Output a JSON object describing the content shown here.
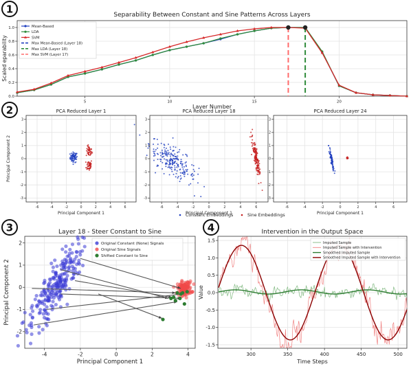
{
  "panel_labels": [
    "1",
    "2",
    "3",
    "4"
  ],
  "chart_data": [
    {
      "id": "p1",
      "type": "line",
      "title": "Separability Between Constant and Sine Patterns Across Layers",
      "xlabel": "Layer Number",
      "ylabel": "Scaled eparability",
      "xlim": [
        1,
        24
      ],
      "ylim": [
        0,
        1.1
      ],
      "xticks": [
        5,
        10,
        15,
        20
      ],
      "yticks": [
        0.0,
        0.2,
        0.4,
        0.6,
        0.8,
        1.0
      ],
      "grid": true,
      "legend_position": "top-left",
      "x": [
        1,
        2,
        3,
        4,
        5,
        6,
        7,
        8,
        9,
        10,
        11,
        12,
        13,
        14,
        15,
        16,
        17,
        18,
        19,
        20,
        21,
        22,
        23,
        24
      ],
      "series": [
        {
          "name": "Mean-Based",
          "color": "#1f3fbf",
          "marker": "circle",
          "values": [
            0.05,
            0.09,
            0.17,
            0.28,
            0.33,
            0.39,
            0.46,
            0.52,
            0.6,
            0.67,
            0.72,
            0.77,
            0.83,
            0.9,
            0.95,
            0.99,
            1.0,
            1.0,
            0.64,
            0.15,
            0.05,
            0.02,
            0.01,
            0.0
          ]
        },
        {
          "name": "LDA",
          "color": "#2e8b3a",
          "marker": "circle",
          "values": [
            0.05,
            0.09,
            0.17,
            0.28,
            0.33,
            0.39,
            0.46,
            0.52,
            0.6,
            0.67,
            0.72,
            0.77,
            0.84,
            0.9,
            0.95,
            0.99,
            1.0,
            1.0,
            0.65,
            0.15,
            0.05,
            0.02,
            0.01,
            0.0
          ]
        },
        {
          "name": "SVM",
          "color": "#d62728",
          "marker": "triangle",
          "values": [
            0.06,
            0.1,
            0.19,
            0.3,
            0.36,
            0.42,
            0.49,
            0.56,
            0.64,
            0.72,
            0.79,
            0.85,
            0.9,
            0.95,
            0.98,
            1.0,
            1.0,
            0.99,
            0.63,
            0.16,
            0.05,
            0.02,
            0.01,
            0.0
          ]
        }
      ],
      "vlines": [
        {
          "name": "Max Mean-Based (Layer 18)",
          "x": 18,
          "color": "#1f3fbf"
        },
        {
          "name": "Max LDA (Layer 18)",
          "x": 18,
          "color": "#2e8b3a"
        },
        {
          "name": "Max SVM (Layer 17)",
          "x": 17,
          "color": "#ff6b6b"
        }
      ],
      "max_markers": [
        {
          "x": 17,
          "y": 1.0
        },
        {
          "x": 18,
          "y": 1.0
        }
      ]
    },
    {
      "id": "p2",
      "type": "scatter",
      "subplots": [
        {
          "title": "PCA Reduced Layer 1",
          "clusters": [
            {
              "class": "Constant Embeddings",
              "cx": -1.0,
              "cy": 0.1,
              "sx": 0.25,
              "sy": 0.2,
              "rot": 0,
              "n": 70
            },
            {
              "class": "Sine Embeddings",
              "cx": 1.1,
              "cy": 0.55,
              "sx": 0.2,
              "sy": 0.2,
              "rot": 0,
              "n": 45
            },
            {
              "class": "Sine Embeddings",
              "cx": 1.1,
              "cy": -0.5,
              "sx": 0.2,
              "sy": 0.22,
              "rot": 0,
              "n": 45
            }
          ]
        },
        {
          "title": "PCA Reduced Layer 18",
          "clusters": [
            {
              "class": "Constant Embeddings",
              "cx": -4.6,
              "cy": -0.2,
              "sx": 1.6,
              "sy": 0.5,
              "rot": -0.42,
              "n": 230
            },
            {
              "class": "Sine Embeddings",
              "cx": 6.0,
              "cy": 0.0,
              "sx": 0.8,
              "sy": 0.12,
              "rot": -1.3,
              "n": 150
            }
          ]
        },
        {
          "title": "PCA Reduced Layer 24",
          "clusters": [
            {
              "class": "Constant Embeddings",
              "cx": -1.0,
              "cy": 0.0,
              "sx": 0.5,
              "sy": 0.06,
              "rot": -1.28,
              "n": 80
            },
            {
              "class": "Sine Embeddings",
              "cx": 0.8,
              "cy": 0.05,
              "sx": 0.06,
              "sy": 0.06,
              "rot": 0,
              "n": 15
            }
          ]
        }
      ],
      "xlabel": "Principal Component 1",
      "ylabel": "Principal Component 2",
      "xlim": [
        -7.5,
        7.5
      ],
      "ylim": [
        -3.3,
        3.3
      ],
      "xticks": [
        -6,
        -4,
        -2,
        0,
        2,
        4,
        6
      ],
      "yticks": [
        -3,
        -2,
        -1,
        0,
        1,
        2,
        3
      ],
      "grid": true,
      "legend_position": "bottom-center",
      "legend": [
        {
          "name": "Constant Embeddings",
          "color": "#1f3fbf"
        },
        {
          "name": "Sine Embeddings",
          "color": "#c62020"
        }
      ]
    },
    {
      "id": "p3",
      "type": "scatter",
      "title": "Layer 18 - Steer Constant to Sine",
      "xlabel": "Principal Component 1",
      "ylabel": "Principal Component 2",
      "xlim": [
        -5.1,
        4.4
      ],
      "ylim": [
        -2.75,
        2.3
      ],
      "xticks": [
        -4,
        -2,
        0,
        2,
        4
      ],
      "yticks": [
        -2,
        -1,
        0,
        1,
        2
      ],
      "grid": true,
      "legend_position": "top-center",
      "legend": [
        {
          "name": "Original Constant (None) Signals",
          "color": "#3b3bd6"
        },
        {
          "name": "Original Sine Signals",
          "color": "#f04848"
        },
        {
          "name": "Shifted Constant to Sine",
          "color": "#2e7d32"
        }
      ],
      "clusters": [
        {
          "class": "Original Constant (None) Signals",
          "cx": -3.4,
          "cy": 0.0,
          "sx": 1.15,
          "sy": 0.35,
          "rot": 0.93,
          "n": 240
        },
        {
          "class": "Original Sine Signals",
          "cx": 3.8,
          "cy": -0.05,
          "sx": 0.2,
          "sy": 0.16,
          "rot": 0,
          "n": 110
        }
      ],
      "arrows": [
        {
          "from": [
            -2.0,
            1.3
          ],
          "to": [
            3.6,
            -0.05
          ]
        },
        {
          "from": [
            -4.7,
            -0.05
          ],
          "to": [
            3.3,
            -0.25
          ]
        },
        {
          "from": [
            -2.3,
            0.3
          ],
          "to": [
            3.1,
            -0.45
          ]
        },
        {
          "from": [
            -3.9,
            -1.0
          ],
          "to": [
            3.7,
            -0.3
          ]
        },
        {
          "from": [
            -4.6,
            -1.7
          ],
          "to": [
            3.4,
            -0.65
          ]
        },
        {
          "from": [
            -3.1,
            0.8
          ],
          "to": [
            2.9,
            -0.5
          ]
        },
        {
          "from": [
            -3.1,
            -0.3
          ],
          "to": [
            3.6,
            -0.5
          ]
        },
        {
          "from": [
            -1.0,
            -0.3
          ],
          "to": [
            2.55,
            -1.4
          ]
        }
      ],
      "shifted_points": [
        [
          2.6,
          -1.45
        ],
        [
          3.05,
          -0.5
        ],
        [
          3.3,
          -0.6
        ],
        [
          3.55,
          -0.5
        ],
        [
          3.7,
          -0.25
        ],
        [
          3.6,
          -0.3
        ],
        [
          3.8,
          -0.75
        ],
        [
          3.95,
          -0.2
        ],
        [
          3.4,
          -0.25
        ],
        [
          3.2,
          -0.45
        ]
      ]
    },
    {
      "id": "p4",
      "type": "line",
      "title": "Intervention in the Output Space",
      "xlabel": "Time Steps",
      "ylabel": "Value",
      "xlim": [
        255,
        512
      ],
      "ylim": [
        -1.6,
        1.62
      ],
      "xticks": [
        300,
        350,
        400,
        450,
        500
      ],
      "yticks": [
        -1.5,
        -1.0,
        -0.5,
        0.0,
        0.5,
        1.0,
        1.5
      ],
      "grid": true,
      "legend_position": "top-right",
      "legend": [
        {
          "name": "Imputed Sample",
          "color": "#7fb87f"
        },
        {
          "name": "Imputed Sample with Intervention",
          "color": "#f08080"
        },
        {
          "name": "Smoothed Imputed Sample",
          "color": "#2e7d32"
        },
        {
          "name": "Smoothed Imputed Sample with Intervention",
          "color": "#8b0000"
        }
      ],
      "signal": {
        "x_start": 256,
        "x_end": 512,
        "amplitude": 1.36,
        "period": 133,
        "peak_x": 287,
        "noise_raw": 0.18,
        "baseline_amp": 0.06
      }
    }
  ]
}
